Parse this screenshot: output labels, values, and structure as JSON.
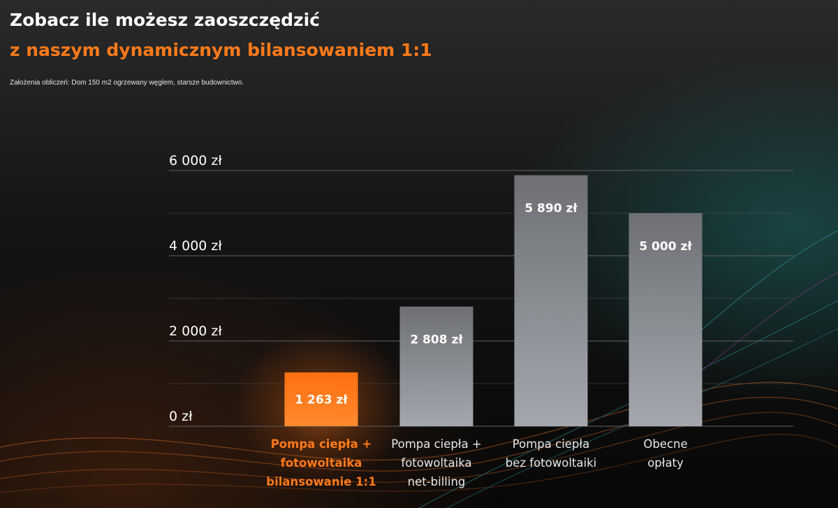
{
  "header": {
    "title": "Zobacz ile możesz zaoszczędzić",
    "subtitle": "z naszym dynamicznym bilansowaniem 1:1",
    "assumptions": "Założenia obliczeń: Dom 150 m2 ogrzewany węglem, starsze budownictwo."
  },
  "colors": {
    "accent": "#ff7a1a",
    "bar_gray_top": "#6e7074",
    "bar_gray_bottom": "#a4a8ae",
    "grid": "#5a5a5a"
  },
  "chart_data": {
    "type": "bar",
    "categories": [
      [
        "Pompa ciepła +",
        "fotowoltaika",
        "bilansowanie 1:1"
      ],
      [
        "Pompa ciepła +",
        "fotowoltaika",
        "net-billing"
      ],
      [
        "Pompa ciepła",
        "bez fotowoltaiki"
      ],
      [
        "Obecne",
        "opłaty"
      ]
    ],
    "values": [
      1263,
      2808,
      5890,
      5000
    ],
    "value_labels": [
      "1 263 zł",
      "2 808 zł",
      "5 890 zł",
      "5 000 zł"
    ],
    "highlighted_index": 0,
    "ylim": [
      0,
      6000
    ],
    "yticks": [
      0,
      2000,
      4000,
      6000
    ],
    "ytick_labels": [
      "0 zł",
      "2 000 zł",
      "4 000 zł",
      "6 000 zł"
    ],
    "grid": true
  }
}
